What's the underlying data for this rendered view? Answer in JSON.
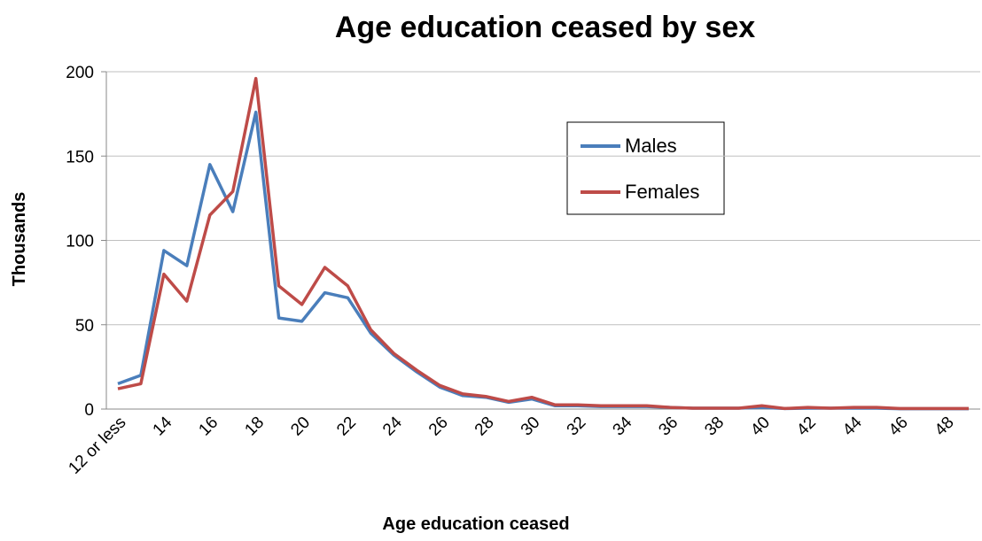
{
  "chart_data": {
    "type": "line",
    "title": "Age education ceased by sex",
    "x_label": "Age education ceased",
    "y_label": "Thousands",
    "categories": [
      "12 or less",
      null,
      "14",
      null,
      "16",
      null,
      "18",
      null,
      "20",
      null,
      "22",
      null,
      "24",
      null,
      "26",
      null,
      "28",
      null,
      "30",
      null,
      "32",
      null,
      "34",
      null,
      "36",
      null,
      "38",
      null,
      "40",
      null,
      "42",
      null,
      "44",
      null,
      "46",
      null,
      "48",
      null
    ],
    "series": [
      {
        "name": "Males",
        "color": "#4a7ebb",
        "values": [
          15,
          20,
          94,
          85,
          145,
          117,
          176,
          54,
          52,
          69,
          66,
          45,
          32,
          22,
          13,
          8,
          7,
          4,
          6,
          2,
          2,
          1.5,
          1.5,
          1.5,
          1,
          0.5,
          0.5,
          0.5,
          1,
          0.3,
          0.5,
          0.5,
          0.5,
          0.5,
          0.2,
          0.2,
          0.2,
          0.2
        ]
      },
      {
        "name": "Females",
        "color": "#be4b48",
        "values": [
          12,
          15,
          80,
          64,
          115,
          129,
          196,
          73,
          62,
          84,
          73,
          47,
          33,
          23,
          14,
          9,
          7.5,
          4.5,
          7,
          2.5,
          2.5,
          2,
          2,
          2,
          1,
          0.5,
          0.5,
          0.5,
          2,
          0.3,
          1,
          0.5,
          1,
          1,
          0.3,
          0.3,
          0.3,
          0.3
        ]
      }
    ],
    "ylim": [
      0,
      200
    ],
    "yticks": [
      0,
      50,
      100,
      150,
      200
    ],
    "grid": true
  }
}
